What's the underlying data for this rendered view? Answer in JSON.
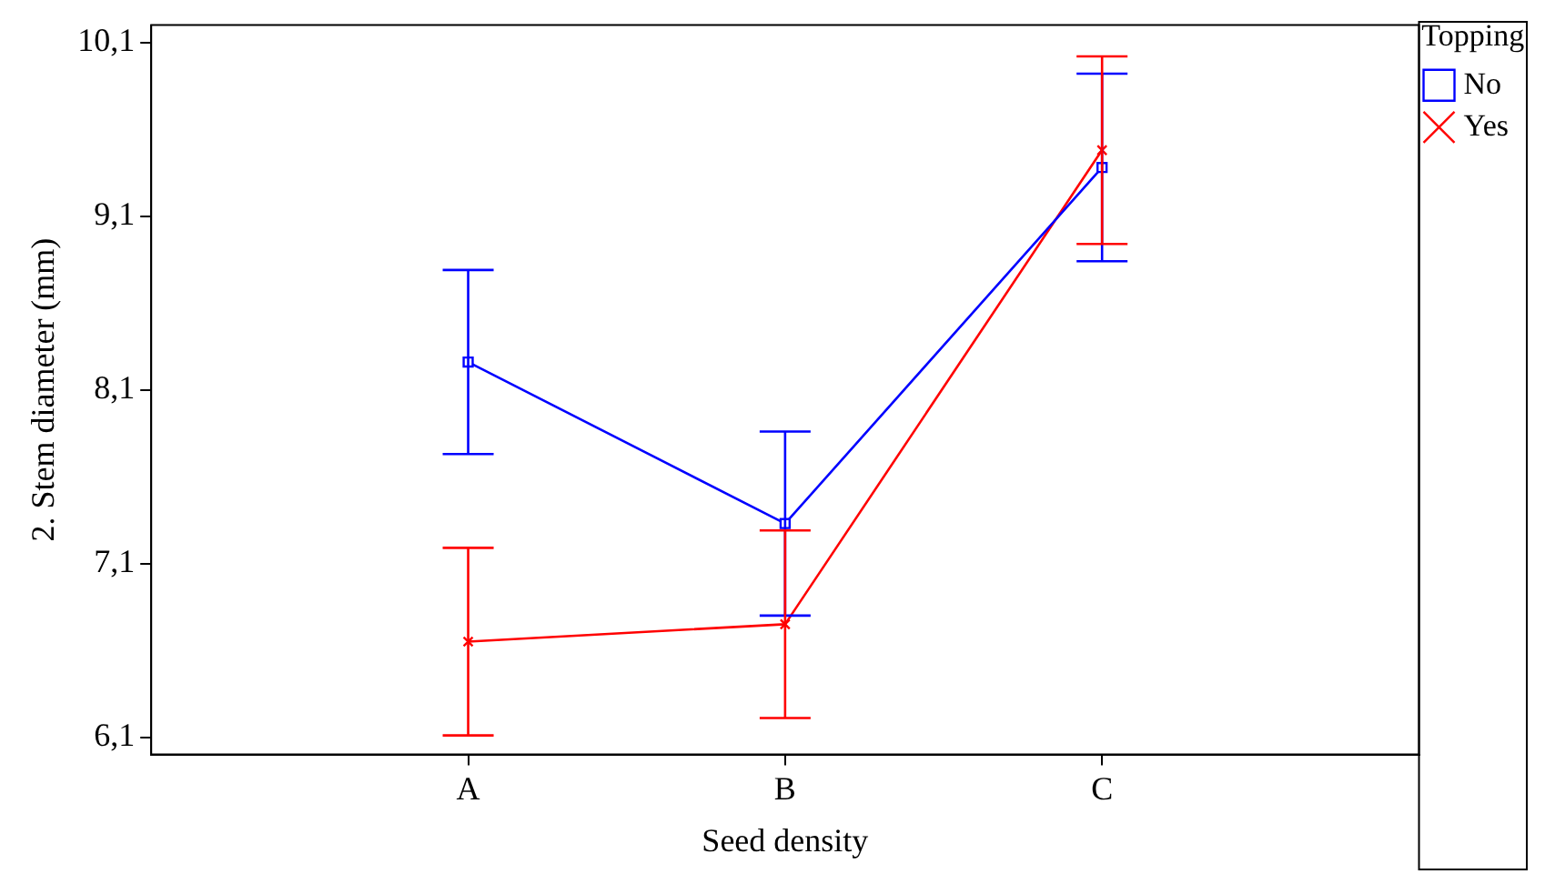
{
  "chart_data": {
    "type": "line",
    "xlabel": "Seed density",
    "ylabel": "2. Stem diameter (mm)",
    "legend_title": "Topping",
    "categories": [
      "A",
      "B",
      "C"
    ],
    "series": [
      {
        "name": "No",
        "color": "#0000ff",
        "marker": "square",
        "values": [
          8.26,
          7.33,
          9.38
        ],
        "errors": [
          0.53,
          0.53,
          0.54
        ]
      },
      {
        "name": "Yes",
        "color": "#ff0000",
        "marker": "cross",
        "values": [
          6.65,
          6.75,
          9.48
        ],
        "errors": [
          0.54,
          0.54,
          0.54
        ]
      }
    ],
    "ylim": [
      6.0,
      10.2
    ],
    "yticks": [
      {
        "value": 6.1,
        "label": "6,1"
      },
      {
        "value": 7.1,
        "label": "7,1"
      },
      {
        "value": 8.1,
        "label": "8,1"
      },
      {
        "value": 9.1,
        "label": "9,1"
      },
      {
        "value": 10.1,
        "label": "10,1"
      }
    ],
    "grid": false,
    "legend": "top right"
  }
}
